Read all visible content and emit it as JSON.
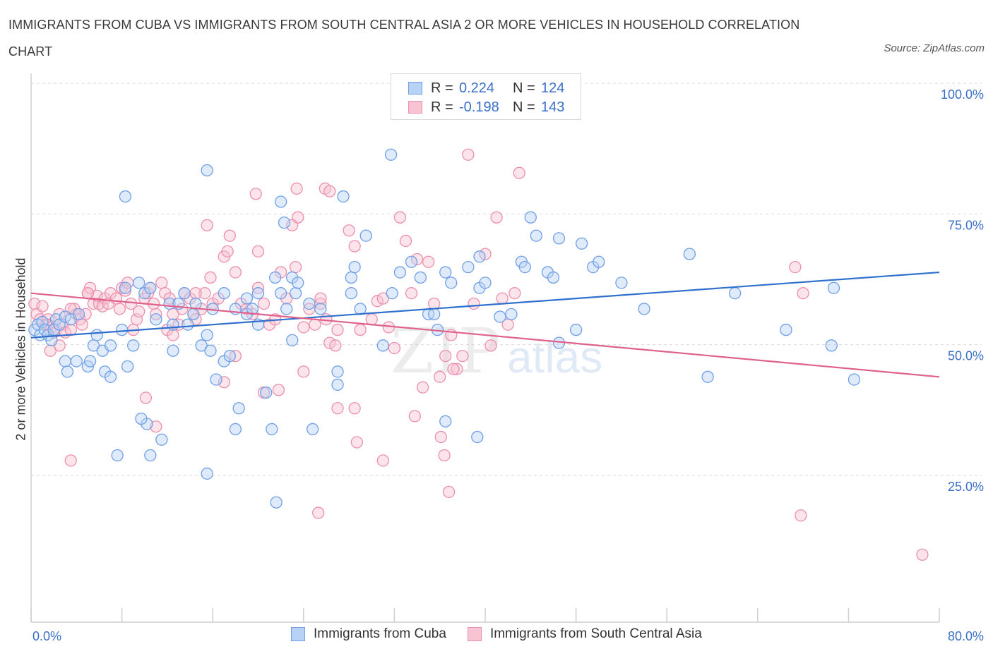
{
  "title": "IMMIGRANTS FROM CUBA VS IMMIGRANTS FROM SOUTH CENTRAL ASIA 2 OR MORE VEHICLES IN HOUSEHOLD CORRELATION CHART",
  "source": "Source: ZipAtlas.com",
  "colors": {
    "blue_fill": "#b8d2f5",
    "blue_stroke": "#6f9fe6",
    "blue_line": "#2f6fce",
    "pink_fill": "#f8c3d3",
    "pink_stroke": "#eb8fae",
    "pink_line": "#e0608c",
    "tick_text": "#3a6fc7",
    "grid": "#d9d9d9"
  },
  "legend": {
    "rows": [
      {
        "r_label": "R =",
        "r_value": "0.224",
        "n_label": "N =",
        "n_value": "124"
      },
      {
        "r_label": "R =",
        "r_value": "-0.198",
        "n_label": "N =",
        "n_value": "143"
      }
    ]
  },
  "watermark": {
    "zip": "ZIP",
    "atlas": "atlas"
  },
  "chart_data": {
    "type": "scatter",
    "title": "IMMIGRANTS FROM CUBA VS IMMIGRANTS FROM SOUTH CENTRAL ASIA 2 OR MORE VEHICLES IN HOUSEHOLD CORRELATION CHART",
    "xlabel": "",
    "ylabel": "2 or more Vehicles in Household",
    "xlim": [
      0,
      80
    ],
    "ylim": [
      0,
      100
    ],
    "x_tick_labels": [
      "0.0%",
      "80.0%"
    ],
    "y_ticks": [
      {
        "value": 100,
        "label": "100.0%"
      },
      {
        "value": 75,
        "label": "75.0%"
      },
      {
        "value": 50,
        "label": "50.0%"
      },
      {
        "value": 25,
        "label": "25.0%"
      }
    ],
    "series": [
      {
        "name": "Immigrants from Cuba",
        "color": "blue",
        "R": 0.224,
        "N": 124,
        "trend": {
          "x0": 0,
          "y0": 53.5,
          "x1": 80,
          "y1": 66.0
        },
        "points": [
          [
            0.3,
            55
          ],
          [
            0.6,
            56
          ],
          [
            0.8,
            54
          ],
          [
            1.0,
            56.5
          ],
          [
            1.2,
            55
          ],
          [
            1.5,
            54
          ],
          [
            1.8,
            53
          ],
          [
            2.0,
            55
          ],
          [
            2.2,
            57
          ],
          [
            2.5,
            56
          ],
          [
            3.0,
            57.5
          ],
          [
            3.5,
            57
          ],
          [
            4.2,
            58
          ],
          [
            3.0,
            49
          ],
          [
            3.2,
            47
          ],
          [
            4.0,
            49
          ],
          [
            5.0,
            48
          ],
          [
            5.2,
            49
          ],
          [
            6.5,
            47
          ],
          [
            7.0,
            46
          ],
          [
            5.5,
            52
          ],
          [
            6.3,
            51
          ],
          [
            7.0,
            52
          ],
          [
            5.8,
            54
          ],
          [
            8.5,
            48
          ],
          [
            8.0,
            55
          ],
          [
            9.0,
            52
          ],
          [
            8.3,
            63
          ],
          [
            9.5,
            64
          ],
          [
            10.0,
            62
          ],
          [
            10.5,
            63
          ],
          [
            11.0,
            57
          ],
          [
            12.2,
            60
          ],
          [
            12.5,
            56
          ],
          [
            12.5,
            51
          ],
          [
            13.0,
            60
          ],
          [
            13.5,
            62
          ],
          [
            13.8,
            56
          ],
          [
            14.3,
            58
          ],
          [
            14.5,
            60
          ],
          [
            15.0,
            52
          ],
          [
            15.5,
            54
          ],
          [
            15.8,
            51
          ],
          [
            16.3,
            45.5
          ],
          [
            16.0,
            59
          ],
          [
            17.0,
            49
          ],
          [
            17.5,
            50
          ],
          [
            18.0,
            59
          ],
          [
            17.0,
            62
          ],
          [
            19.0,
            61
          ],
          [
            19.0,
            58
          ],
          [
            19.5,
            59
          ],
          [
            20.0,
            56
          ],
          [
            20.0,
            62
          ],
          [
            21.5,
            65
          ],
          [
            22.0,
            62
          ],
          [
            22.5,
            59
          ],
          [
            23.0,
            53
          ],
          [
            23.3,
            62
          ],
          [
            23.0,
            65
          ],
          [
            23.5,
            64
          ],
          [
            24.5,
            60
          ],
          [
            25.5,
            59
          ],
          [
            27.0,
            47
          ],
          [
            27.0,
            44.5
          ],
          [
            28.2,
            65
          ],
          [
            28.5,
            67
          ],
          [
            28.2,
            62
          ],
          [
            29.0,
            59
          ],
          [
            29.5,
            73
          ],
          [
            31.0,
            52
          ],
          [
            31.8,
            62
          ],
          [
            32.5,
            66
          ],
          [
            33.5,
            68
          ],
          [
            34.3,
            65
          ],
          [
            35.0,
            58
          ],
          [
            35.5,
            58
          ],
          [
            35.8,
            55
          ],
          [
            36.5,
            66
          ],
          [
            37.0,
            64
          ],
          [
            38.5,
            67
          ],
          [
            39.5,
            63
          ],
          [
            39.5,
            69
          ],
          [
            40.0,
            64
          ],
          [
            41.3,
            57.5
          ],
          [
            42.3,
            58
          ],
          [
            43.2,
            68
          ],
          [
            43.5,
            67
          ],
          [
            44.5,
            73
          ],
          [
            45.5,
            66
          ],
          [
            46.0,
            65
          ],
          [
            46.5,
            52.5
          ],
          [
            48.0,
            55
          ],
          [
            48.5,
            71.5
          ],
          [
            49.5,
            67
          ],
          [
            50.0,
            68
          ],
          [
            52.0,
            64
          ],
          [
            54.0,
            59
          ],
          [
            11.5,
            34
          ],
          [
            10.2,
            37
          ],
          [
            10.5,
            31
          ],
          [
            7.6,
            31
          ],
          [
            8.3,
            80.5
          ],
          [
            9.7,
            38
          ],
          [
            15.5,
            85.5
          ],
          [
            15.5,
            27.5
          ],
          [
            18.3,
            40
          ],
          [
            18.0,
            36
          ],
          [
            20.7,
            43
          ],
          [
            21.2,
            36
          ],
          [
            21.6,
            22
          ],
          [
            22.0,
            79.5
          ],
          [
            22.3,
            75.5
          ],
          [
            24.8,
            36
          ],
          [
            27.5,
            80.5
          ],
          [
            31.7,
            88.5
          ],
          [
            36.5,
            37.5
          ],
          [
            39.3,
            34.5
          ],
          [
            44.0,
            76.5
          ],
          [
            46.5,
            72.5
          ],
          [
            59.6,
            46
          ],
          [
            62.0,
            62
          ],
          [
            66.5,
            55
          ],
          [
            70.7,
            63
          ],
          [
            70.5,
            52
          ],
          [
            72.5,
            45.5
          ],
          [
            58.0,
            69.5
          ]
        ]
      },
      {
        "name": "Immigrants from South Central Asia",
        "color": "pink",
        "R": -0.198,
        "N": 143,
        "trend": {
          "x0": 0,
          "y0": 62.0,
          "x1": 80,
          "y1": 46.0
        },
        "points": [
          [
            0.3,
            60
          ],
          [
            0.5,
            58
          ],
          [
            0.8,
            57
          ],
          [
            1.0,
            59.5
          ],
          [
            1.3,
            56
          ],
          [
            1.5,
            57
          ],
          [
            1.8,
            55.5
          ],
          [
            2.0,
            54.5
          ],
          [
            2.2,
            55
          ],
          [
            2.5,
            58
          ],
          [
            2.8,
            56
          ],
          [
            3.0,
            54.5
          ],
          [
            3.5,
            55
          ],
          [
            3.8,
            59
          ],
          [
            4.0,
            58
          ],
          [
            4.3,
            57
          ],
          [
            4.5,
            56
          ],
          [
            4.8,
            58
          ],
          [
            5.0,
            62
          ],
          [
            5.2,
            63
          ],
          [
            5.5,
            60
          ],
          [
            5.8,
            61.5
          ],
          [
            6.0,
            60
          ],
          [
            6.3,
            59.5
          ],
          [
            6.5,
            61
          ],
          [
            6.8,
            60
          ],
          [
            7.0,
            62
          ],
          [
            7.5,
            61
          ],
          [
            7.8,
            59
          ],
          [
            8.0,
            63
          ],
          [
            8.3,
            62.5
          ],
          [
            8.5,
            64
          ],
          [
            8.8,
            60
          ],
          [
            9.0,
            55
          ],
          [
            9.3,
            57
          ],
          [
            9.5,
            58.5
          ],
          [
            10.0,
            61
          ],
          [
            10.3,
            62
          ],
          [
            10.5,
            63
          ],
          [
            10.8,
            60
          ],
          [
            11.0,
            58
          ],
          [
            11.5,
            64
          ],
          [
            11.8,
            62
          ],
          [
            12.0,
            55
          ],
          [
            12.5,
            54
          ],
          [
            13.0,
            56
          ],
          [
            13.3,
            59
          ],
          [
            13.5,
            62
          ],
          [
            14.0,
            61
          ],
          [
            14.3,
            58
          ],
          [
            14.5,
            57
          ],
          [
            15.0,
            59
          ],
          [
            15.3,
            62
          ],
          [
            15.8,
            65
          ],
          [
            16.0,
            60
          ],
          [
            16.5,
            61
          ],
          [
            17.0,
            69
          ],
          [
            17.3,
            70
          ],
          [
            17.5,
            73
          ],
          [
            18.0,
            66
          ],
          [
            18.5,
            60
          ],
          [
            19.0,
            59
          ],
          [
            19.5,
            58
          ],
          [
            20.0,
            63
          ],
          [
            20.5,
            60
          ],
          [
            21.0,
            56
          ],
          [
            21.5,
            57
          ],
          [
            22.0,
            66
          ],
          [
            22.5,
            61
          ],
          [
            23.0,
            75
          ],
          [
            23.3,
            67
          ],
          [
            23.5,
            76.5
          ],
          [
            24.0,
            55.5
          ],
          [
            24.5,
            59
          ],
          [
            25.0,
            56
          ],
          [
            25.5,
            60
          ],
          [
            26.0,
            57
          ],
          [
            26.3,
            52.5
          ],
          [
            26.8,
            52
          ],
          [
            27.0,
            55
          ],
          [
            28.0,
            74
          ],
          [
            28.5,
            71
          ],
          [
            29.0,
            55
          ],
          [
            30.0,
            57
          ],
          [
            30.5,
            60.5
          ],
          [
            31.0,
            61
          ],
          [
            31.5,
            55.5
          ],
          [
            32.0,
            51.5
          ],
          [
            32.5,
            76.5
          ],
          [
            33.0,
            72
          ],
          [
            33.5,
            62
          ],
          [
            34.0,
            68.5
          ],
          [
            34.5,
            44
          ],
          [
            35.0,
            68
          ],
          [
            35.5,
            60
          ],
          [
            36.0,
            46
          ],
          [
            36.5,
            50
          ],
          [
            37.0,
            54
          ],
          [
            37.5,
            47.5
          ],
          [
            38.0,
            50
          ],
          [
            38.5,
            88.5
          ],
          [
            39.0,
            60
          ],
          [
            40.0,
            69.5
          ],
          [
            40.5,
            52
          ],
          [
            41.0,
            76.5
          ],
          [
            41.5,
            61
          ],
          [
            42.0,
            56
          ],
          [
            43.0,
            85
          ],
          [
            14.5,
            62
          ],
          [
            5.0,
            62
          ],
          [
            3.5,
            59
          ],
          [
            2.5,
            52
          ],
          [
            1.7,
            51
          ],
          [
            3.5,
            30
          ],
          [
            10.1,
            42
          ],
          [
            11.0,
            36.5
          ],
          [
            12.2,
            61
          ],
          [
            12.5,
            58
          ],
          [
            15.5,
            75
          ],
          [
            17.0,
            45
          ],
          [
            18.0,
            50
          ],
          [
            19.8,
            81
          ],
          [
            20.0,
            70
          ],
          [
            20.5,
            43
          ],
          [
            21.8,
            43.5
          ],
          [
            23.4,
            82
          ],
          [
            24.0,
            47
          ],
          [
            25.3,
            20
          ],
          [
            25.5,
            61
          ],
          [
            25.9,
            82
          ],
          [
            26.3,
            81.5
          ],
          [
            27.0,
            40
          ],
          [
            28.5,
            40
          ],
          [
            28.7,
            33.5
          ],
          [
            31.0,
            30
          ],
          [
            33.8,
            38.5
          ],
          [
            36.1,
            34.5
          ],
          [
            36.4,
            31
          ],
          [
            36.8,
            24
          ],
          [
            37.2,
            47.5
          ],
          [
            42.6,
            62
          ],
          [
            67.8,
            19.5
          ],
          [
            67.3,
            67
          ],
          [
            68.0,
            62
          ],
          [
            78.5,
            12
          ],
          [
            1.5,
            56
          ]
        ]
      }
    ]
  },
  "bottom_legend": [
    {
      "label": "Immigrants from Cuba"
    },
    {
      "label": "Immigrants from South Central Asia"
    }
  ]
}
